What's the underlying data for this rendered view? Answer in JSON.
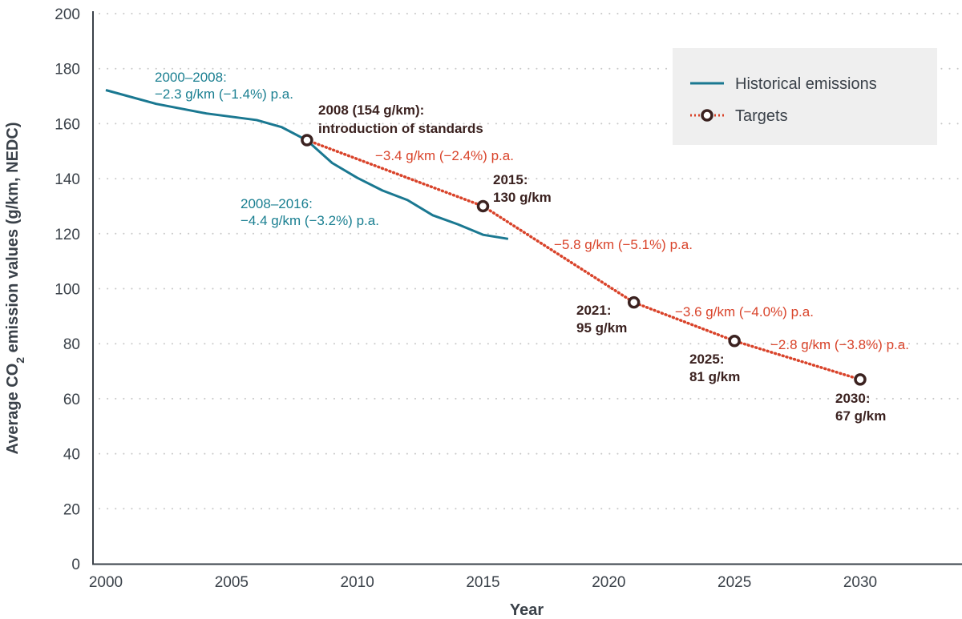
{
  "chart_data": {
    "type": "line",
    "title": "",
    "xlabel": "Year",
    "ylabel": "Average CO2 emission values (g/km, NEDC)",
    "ylabel_parts": [
      "Average CO",
      "2",
      " emission values (g/km, NEDC)"
    ],
    "xlim": [
      2000,
      2034
    ],
    "ylim": [
      0,
      200
    ],
    "xticks": [
      2000,
      2005,
      2010,
      2015,
      2020,
      2025,
      2030
    ],
    "yticks": [
      0,
      20,
      40,
      60,
      80,
      100,
      120,
      140,
      160,
      180,
      200
    ],
    "grid": true,
    "legend_position": "top-right",
    "series": [
      {
        "name": "Historical emissions",
        "style": "solid",
        "color": "#1a7891",
        "x": [
          2000,
          2002,
          2004,
          2006,
          2007,
          2008,
          2009,
          2010,
          2011,
          2012,
          2013,
          2014,
          2015,
          2016
        ],
        "values": [
          172.2,
          167.2,
          163.7,
          161.3,
          158.7,
          153.9,
          145.7,
          140.3,
          135.7,
          132.2,
          126.7,
          123.4,
          119.6,
          118.1
        ]
      },
      {
        "name": "Targets",
        "style": "dotted-with-markers",
        "color": "#d9432a",
        "marker_color": "#3b2220",
        "x": [
          2008,
          2015,
          2021,
          2025,
          2030
        ],
        "values": [
          154,
          130,
          95,
          81,
          67
        ]
      }
    ],
    "annotations": {
      "historical": [
        {
          "lines": [
            "2000–2008:",
            "−2.3 g/km (−1.4%) p.a."
          ]
        },
        {
          "lines": [
            "2008–2016:",
            "−4.4 g/km (−3.2%) p.a."
          ]
        }
      ],
      "rates": [
        "−3.4 g/km (−2.4%) p.a.",
        "−5.8 g/km (−5.1%) p.a.",
        "−3.6 g/km (−4.0%) p.a.",
        "−2.8 g/km (−3.8%) p.a."
      ],
      "targets": [
        {
          "lines": [
            "2008 (154 g/km):",
            "introduction of standards"
          ]
        },
        {
          "lines": [
            "2015:",
            "130 g/km"
          ]
        },
        {
          "lines": [
            "2021:",
            "95 g/km"
          ]
        },
        {
          "lines": [
            "2025:",
            "81 g/km"
          ]
        },
        {
          "lines": [
            "2030:",
            "67 g/km"
          ]
        }
      ]
    },
    "legend": {
      "entries": [
        "Historical emissions",
        "Targets"
      ],
      "background": "#efefef"
    }
  }
}
